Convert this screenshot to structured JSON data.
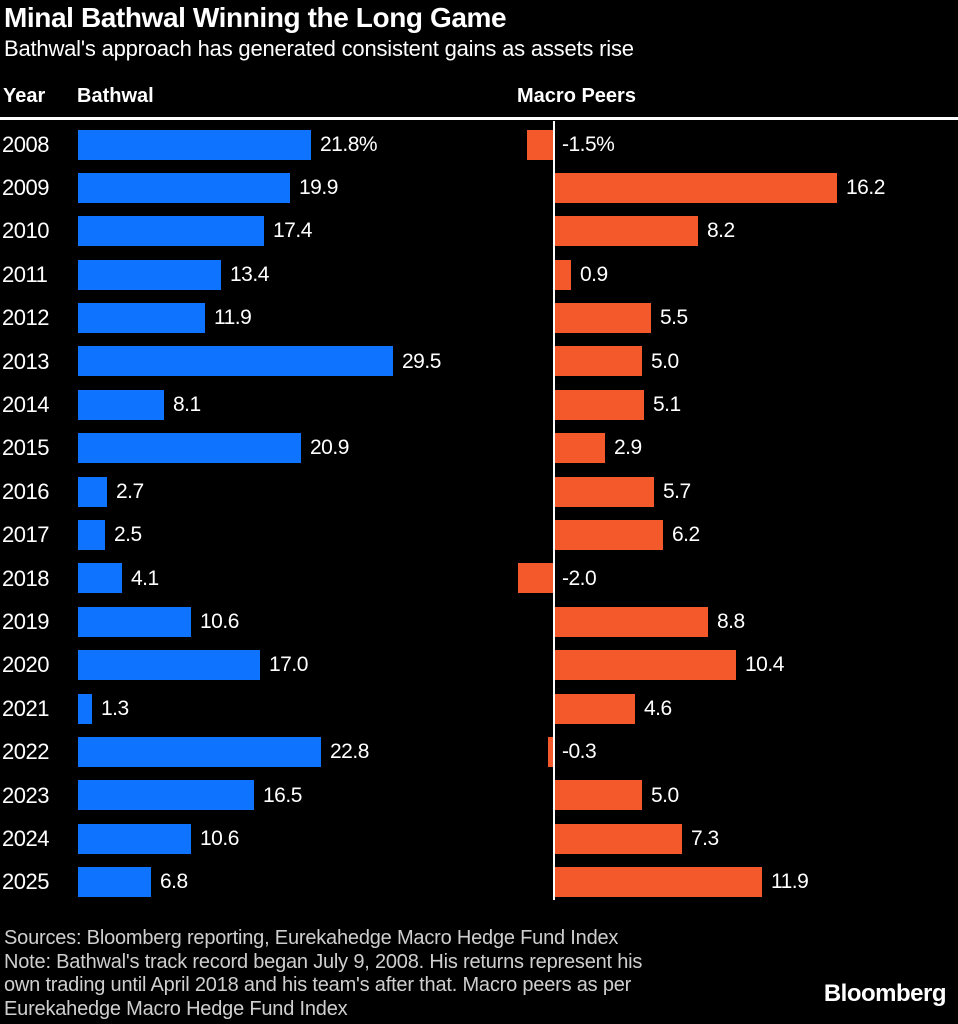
{
  "header": {
    "title": "Minal Bathwal Winning the Long Game",
    "subtitle": "Bathwal's approach has generated consistent gains as assets rise"
  },
  "columns": {
    "year": "Year",
    "bathwal": "Bathwal",
    "macro": "Macro Peers"
  },
  "chart_data": {
    "type": "bar",
    "orientation": "horizontal",
    "value_unit": "percent",
    "grid": false,
    "categories": [
      "2008",
      "2009",
      "2010",
      "2011",
      "2012",
      "2013",
      "2014",
      "2015",
      "2016",
      "2017",
      "2018",
      "2019",
      "2020",
      "2021",
      "2022",
      "2023",
      "2024",
      "2025"
    ],
    "series": [
      {
        "name": "Bathwal",
        "color": "#0e73ff",
        "values": [
          21.8,
          19.9,
          17.4,
          13.4,
          11.9,
          29.5,
          8.1,
          20.9,
          2.7,
          2.5,
          4.1,
          10.6,
          17.0,
          1.3,
          22.8,
          16.5,
          10.6,
          6.8
        ],
        "labels": [
          "21.8%",
          "19.9",
          "17.4",
          "13.4",
          "11.9",
          "29.5",
          "8.1",
          "20.9",
          "2.7",
          "2.5",
          "4.1",
          "10.6",
          "17.0",
          "1.3",
          "22.8",
          "16.5",
          "10.6",
          "6.8"
        ]
      },
      {
        "name": "Macro Peers",
        "color": "#f4592b",
        "values": [
          -1.5,
          16.2,
          8.2,
          0.9,
          5.5,
          5.0,
          5.1,
          2.9,
          5.7,
          6.2,
          -2.0,
          8.8,
          10.4,
          4.6,
          -0.3,
          5.0,
          7.3,
          11.9
        ],
        "labels": [
          "-1.5%",
          "16.2",
          "8.2",
          "0.9",
          "5.5",
          "5.0",
          "5.1",
          "2.9",
          "5.7",
          "6.2",
          "-2.0",
          "8.8",
          "10.4",
          "4.6",
          "-0.3",
          "5.0",
          "7.3",
          "11.9"
        ]
      }
    ],
    "axis": {
      "bathwal_max": 29.5,
      "macro_max": 16.2,
      "zero_line_panel": "Macro Peers"
    }
  },
  "footer": {
    "sources": "Sources: Bloomberg reporting, Eurekahedge Macro Hedge Fund Index",
    "note_lines": [
      "Note: Bathwal's track record began July 9, 2008. His returns represent his",
      "own trading until April 2018 and his team's after that. Macro peers as per",
      "Eurekahedge Macro Hedge Fund Index"
    ],
    "brand": "Bloomberg"
  },
  "colors": {
    "background": "#000000",
    "bathwal_bar": "#0e73ff",
    "macro_bar": "#f4592b",
    "text": "#ffffff",
    "footer_text": "#cfcfcf",
    "rule": "#ffffff"
  }
}
